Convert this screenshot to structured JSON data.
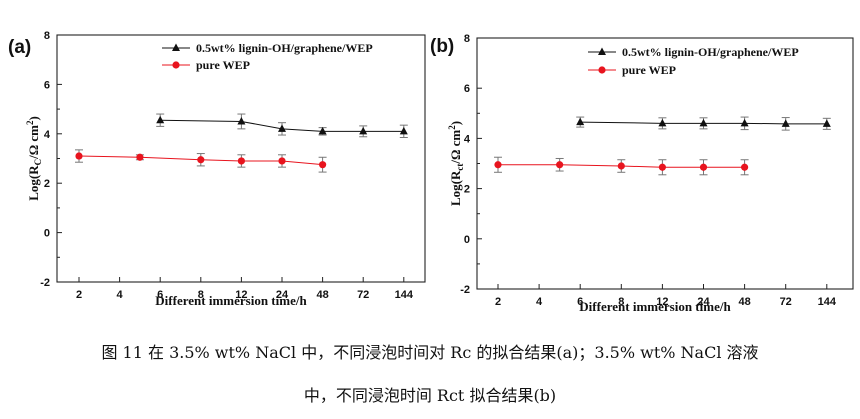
{
  "figure": {
    "caption_line1": "图 11  在 3.5% wt% NaCl 中，不同浸泡时间对 Rc 的拟合结果(a)；3.5% wt% NaCl 溶液",
    "caption_line2": "中，不同浸泡时间 Rct 拟合结果(b)"
  },
  "colors": {
    "series_black": "#111111",
    "series_red": "#e8141e",
    "error_gray": "#777777"
  },
  "chart_data": [
    {
      "panel_label": "(a)",
      "type": "line",
      "xlabel": "Different immersion time/h",
      "ylabel_main": "Log(R",
      "ylabel_sub": "C",
      "ylabel_rest": "/Ω cm",
      "ylabel_sup": "2",
      "ylabel_end": ")",
      "ylim": [
        -2,
        8
      ],
      "yticks": [
        "-2",
        "0",
        "2",
        "4",
        "6",
        "8"
      ],
      "xtick_labels": [
        "2",
        "4",
        "6",
        "8",
        "12",
        "24",
        "48",
        "72",
        "144"
      ],
      "legend_position": "top-right",
      "series": [
        {
          "name": "0.5wt% lignin-OH/graphene/WEP",
          "marker": "triangle",
          "color": "#111111",
          "x_index": [
            2,
            4,
            5,
            6,
            7,
            8
          ],
          "values": [
            4.55,
            4.5,
            4.2,
            4.1,
            4.1,
            4.1
          ],
          "errors": [
            0.25,
            0.3,
            0.25,
            0.15,
            0.22,
            0.25
          ]
        },
        {
          "name": "pure WEP",
          "marker": "circle",
          "color": "#e8141e",
          "x_index": [
            0,
            1.5,
            3,
            4,
            5,
            6
          ],
          "values": [
            3.1,
            3.05,
            2.95,
            2.9,
            2.9,
            2.75
          ],
          "errors": [
            0.25,
            0.1,
            0.25,
            0.25,
            0.25,
            0.3
          ]
        }
      ]
    },
    {
      "panel_label": "(b)",
      "type": "line",
      "xlabel": "Different immersion time/h",
      "ylabel_main": "Log(R",
      "ylabel_sub": "ct",
      "ylabel_rest": "/Ω cm",
      "ylabel_sup": "2",
      "ylabel_end": ")",
      "ylim": [
        -2,
        8
      ],
      "yticks": [
        "-2",
        "0",
        "2",
        "4",
        "6",
        "8"
      ],
      "xtick_labels": [
        "2",
        "4",
        "6",
        "8",
        "12",
        "24",
        "48",
        "72",
        "144"
      ],
      "legend_position": "top-right",
      "series": [
        {
          "name": "0.5wt% lignin-OH/graphene/WEP",
          "marker": "triangle",
          "color": "#111111",
          "x_index": [
            2,
            4,
            5,
            6,
            7,
            8
          ],
          "values": [
            4.65,
            4.6,
            4.6,
            4.6,
            4.58,
            4.58
          ],
          "errors": [
            0.2,
            0.22,
            0.22,
            0.25,
            0.25,
            0.22
          ]
        },
        {
          "name": "pure WEP",
          "marker": "circle",
          "color": "#e8141e",
          "x_index": [
            0,
            1.5,
            3,
            4,
            5,
            6
          ],
          "values": [
            2.95,
            2.95,
            2.9,
            2.85,
            2.85,
            2.85
          ],
          "errors": [
            0.3,
            0.25,
            0.25,
            0.3,
            0.3,
            0.3
          ]
        }
      ]
    }
  ]
}
